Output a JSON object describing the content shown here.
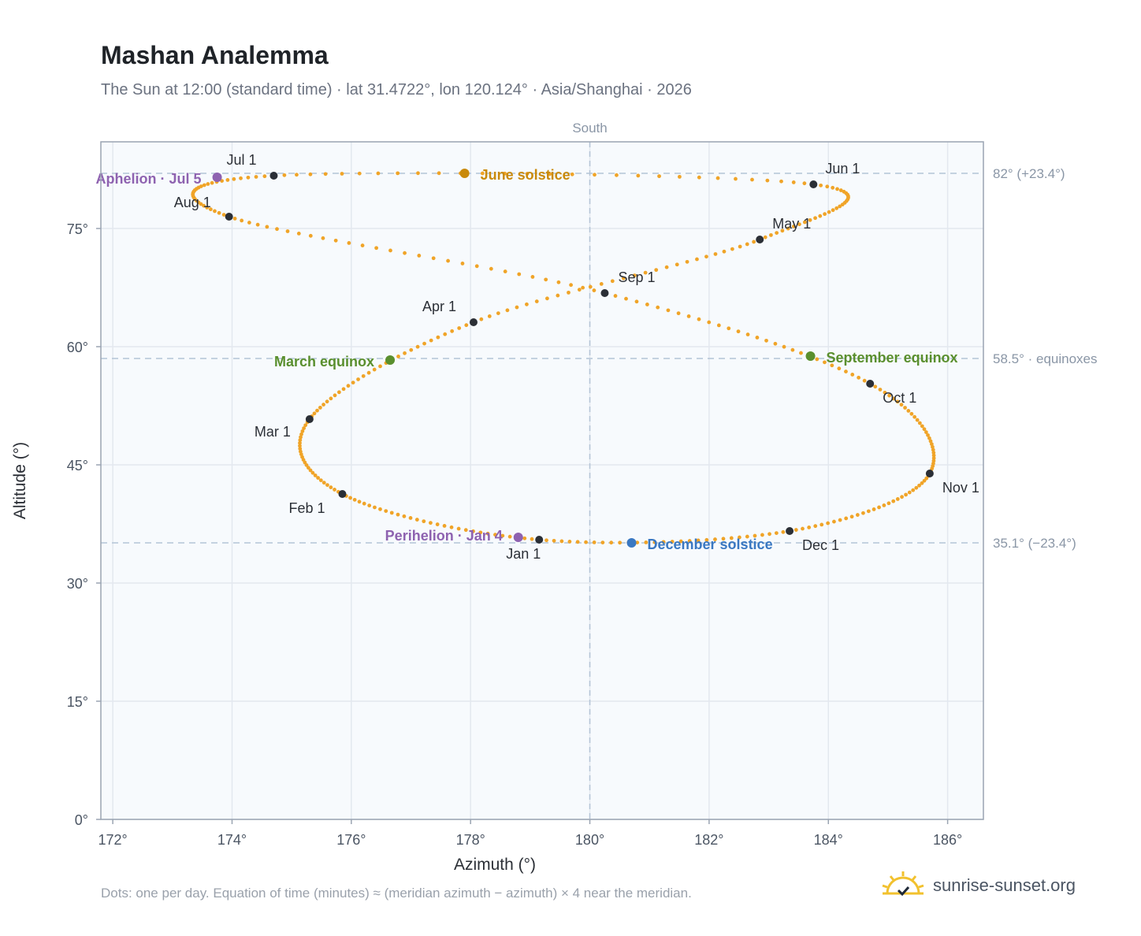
{
  "header": {
    "title": "Mashan Analemma",
    "subtitle": "The Sun at 12:00 (standard time) · lat 31.4722°, lon 120.124° · Asia/Shanghai · 2026"
  },
  "footer": {
    "note": "Dots: one per day. Equation of time (minutes) ≈ (meridian azimuth − azimuth) × 4 near the meridian.",
    "brand": "sunrise-sunset.org"
  },
  "chart_data": {
    "type": "scatter",
    "xlabel": "Azimuth (°)",
    "ylabel": "Altitude (°)",
    "xlim": [
      171.8,
      186.6
    ],
    "ylim": [
      0,
      86
    ],
    "xticks": [
      172,
      174,
      176,
      178,
      180,
      182,
      184,
      186
    ],
    "xtick_labels": [
      "172°",
      "174°",
      "176°",
      "178°",
      "180°",
      "182°",
      "184°",
      "186°"
    ],
    "yticks": [
      0,
      15,
      30,
      45,
      60,
      75
    ],
    "ytick_labels": [
      "0°",
      "15°",
      "30°",
      "45°",
      "60°",
      "75°"
    ],
    "grid": true,
    "meridian": {
      "azimuth": 180,
      "label": "South"
    },
    "reference_lines": [
      {
        "altitude": 82.0,
        "label": "82° (+23.4°)"
      },
      {
        "altitude": 58.5,
        "label": "58.5° · equinoxes"
      },
      {
        "altitude": 35.1,
        "label": "35.1° (−23.4°)"
      }
    ],
    "analemma_color": "#f0a428",
    "months": [
      {
        "label": "Jan 1",
        "az": 179.15,
        "alt": 35.5
      },
      {
        "label": "Feb 1",
        "az": 175.85,
        "alt": 41.3
      },
      {
        "label": "Mar 1",
        "az": 175.3,
        "alt": 50.8
      },
      {
        "label": "Apr 1",
        "az": 178.05,
        "alt": 63.1
      },
      {
        "label": "May 1",
        "az": 182.85,
        "alt": 73.6
      },
      {
        "label": "Jun 1",
        "az": 183.75,
        "alt": 80.6
      },
      {
        "label": "Jul 1",
        "az": 174.7,
        "alt": 81.7
      },
      {
        "label": "Aug 1",
        "az": 173.95,
        "alt": 76.5
      },
      {
        "label": "Sep 1",
        "az": 180.25,
        "alt": 66.8
      },
      {
        "label": "Oct 1",
        "az": 184.7,
        "alt": 55.3
      },
      {
        "label": "Nov 1",
        "az": 185.7,
        "alt": 43.9
      },
      {
        "label": "Dec 1",
        "az": 183.35,
        "alt": 36.6
      }
    ],
    "events": [
      {
        "label": "June solstice",
        "az": 177.9,
        "alt": 82.0,
        "color": "#c98a0c"
      },
      {
        "label": "March equinox",
        "az": 176.65,
        "alt": 58.3,
        "color": "#5a8f2e"
      },
      {
        "label": "September equinox",
        "az": 183.7,
        "alt": 58.8,
        "color": "#5a8f2e"
      },
      {
        "label": "December solstice",
        "az": 180.7,
        "alt": 35.1,
        "color": "#3a78c2"
      },
      {
        "label": "Perihelion · Jan 4",
        "az": 178.8,
        "alt": 35.8,
        "color": "#8e62b0"
      },
      {
        "label": "Aphelion · Jul 5",
        "az": 173.75,
        "alt": 81.5,
        "color": "#8e62b0"
      }
    ]
  }
}
